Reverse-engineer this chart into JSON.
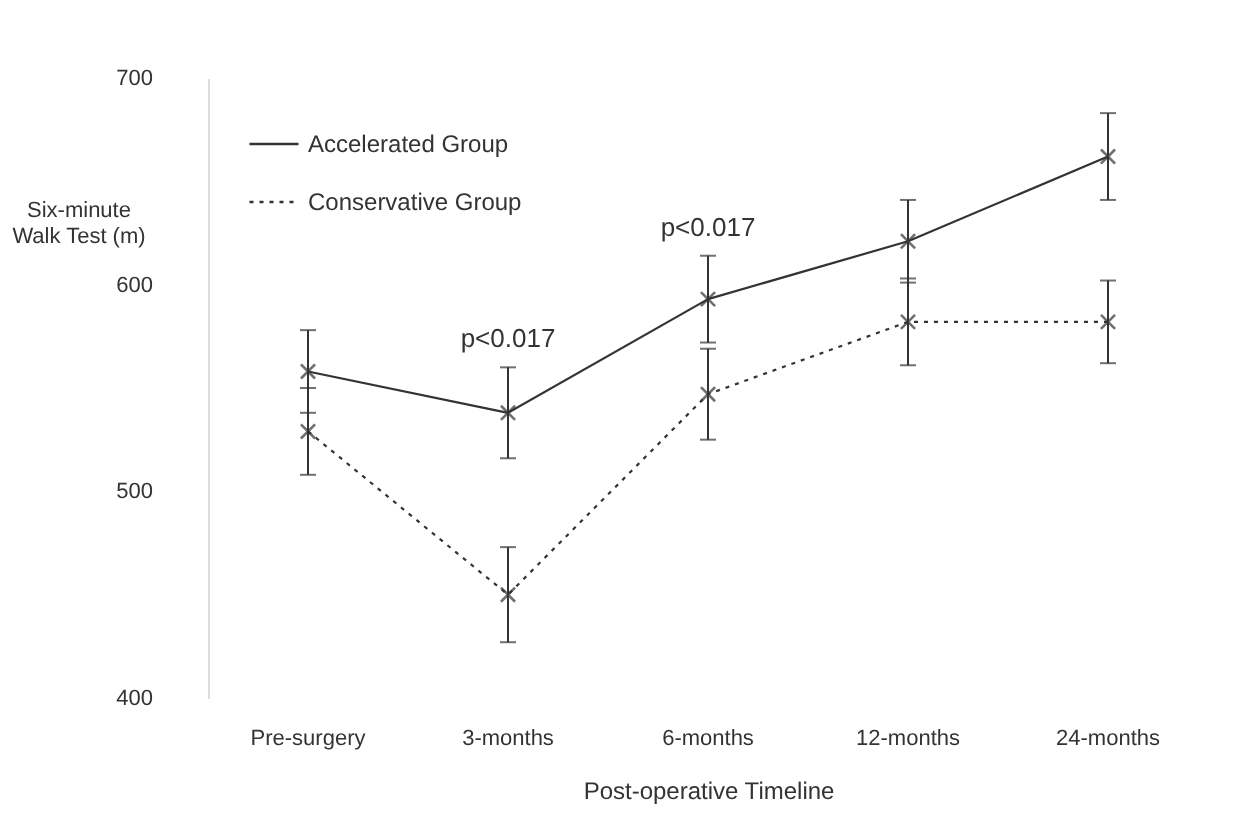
{
  "chart_data": {
    "type": "line",
    "xlabel": "Post-operative Timeline",
    "ylabel": "Six-minute Walk Test (m)",
    "categories": [
      "Pre-surgery",
      "3-months",
      "6-months",
      "12-months",
      "24-months"
    ],
    "series": [
      {
        "name": "Accelerated Group",
        "color": "#333333",
        "line_style": "solid",
        "values": [
          558,
          538,
          593,
          621,
          662
        ],
        "errors": [
          20,
          22,
          21,
          20,
          21
        ]
      },
      {
        "name": "Conservative Group",
        "color": "#333333",
        "line_style": "dotted",
        "values": [
          529,
          450,
          547,
          582,
          582
        ],
        "errors": [
          21,
          23,
          22,
          21,
          20
        ]
      }
    ],
    "ylim": [
      400,
      700
    ],
    "yticks": [
      400,
      500,
      600,
      700
    ],
    "grid": false,
    "legend": "top left",
    "marker": "cross",
    "annotations": [
      "p<0.017",
      "p<0.017"
    ]
  }
}
